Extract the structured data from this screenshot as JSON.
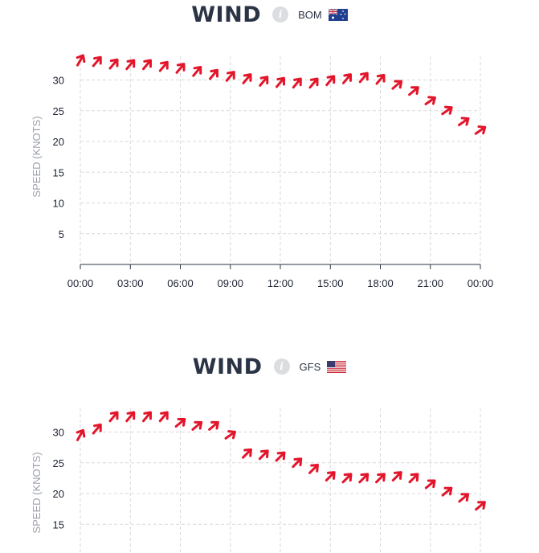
{
  "chart_data": [
    {
      "type": "line",
      "title": "WIND",
      "source": "BOM",
      "flag": "australia-flag-icon",
      "ylabel": "SPEED (KNOTS)",
      "yticks": [
        5,
        10,
        15,
        20,
        25,
        30
      ],
      "xticks": [
        "00:00",
        "03:00",
        "06:00",
        "09:00",
        "12:00",
        "15:00",
        "18:00",
        "21:00",
        "00:00"
      ],
      "xlim_hours": [
        0,
        24
      ],
      "ylim": [
        0,
        34
      ],
      "grid": true,
      "marker": "wind-direction-arrow",
      "color": "#e3152b",
      "series": [
        {
          "x_hours": [
            0,
            1,
            2,
            3,
            4,
            5,
            6,
            7,
            8,
            9,
            10,
            11,
            12,
            13,
            14,
            15,
            16,
            17,
            18,
            19,
            20,
            21,
            22,
            23,
            24
          ],
          "values": [
            33.2,
            33.0,
            32.6,
            32.5,
            32.5,
            32.2,
            31.9,
            31.4,
            30.9,
            30.6,
            30.2,
            29.8,
            29.6,
            29.5,
            29.5,
            29.9,
            30.2,
            30.4,
            30.1,
            29.2,
            28.2,
            26.6,
            25.0,
            23.2,
            21.8
          ],
          "direction_deg": [
            210,
            220,
            220,
            220,
            220,
            220,
            220,
            220,
            220,
            220,
            220,
            220,
            220,
            220,
            220,
            220,
            220,
            220,
            220,
            230,
            230,
            235,
            235,
            235,
            235
          ]
        }
      ]
    },
    {
      "type": "line",
      "title": "WIND",
      "source": "GFS",
      "flag": "usa-flag-icon",
      "ylabel": "SPEED (KNOTS)",
      "yticks": [
        15,
        20,
        25,
        30
      ],
      "xlim_hours": [
        0,
        24
      ],
      "ylim": [
        0,
        34
      ],
      "grid": true,
      "marker": "wind-direction-arrow",
      "color": "#e3152b",
      "series": [
        {
          "x_hours": [
            0,
            1,
            2,
            3,
            4,
            5,
            6,
            7,
            8,
            9,
            10,
            11,
            12,
            13,
            14,
            15,
            16,
            17,
            18,
            19,
            20,
            21,
            22,
            23,
            24
          ],
          "values": [
            29.5,
            30.5,
            32.5,
            32.5,
            32.5,
            32.5,
            31.5,
            31.0,
            31.0,
            29.5,
            26.5,
            26.3,
            26.0,
            25.0,
            24.0,
            22.8,
            22.5,
            22.5,
            22.5,
            22.8,
            22.5,
            21.5,
            20.3,
            19.3,
            18.0
          ],
          "direction_deg": [
            210,
            220,
            220,
            220,
            220,
            220,
            230,
            230,
            230,
            235,
            225,
            225,
            225,
            225,
            225,
            225,
            225,
            225,
            225,
            225,
            225,
            230,
            230,
            230,
            230
          ]
        }
      ]
    }
  ]
}
